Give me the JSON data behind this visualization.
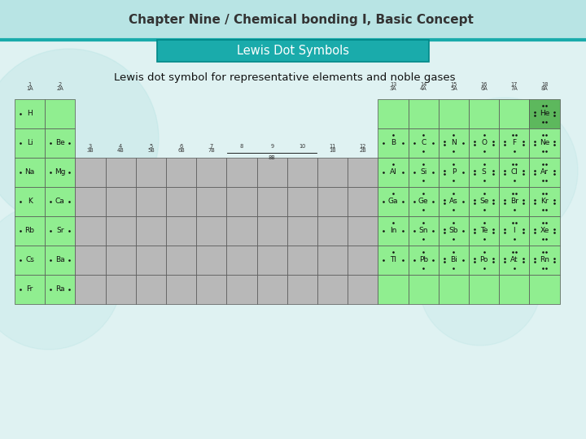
{
  "title": "Chapter Nine / Chemical bonding I, Basic Concept",
  "subtitle": "Lewis Dot Symbols",
  "subtitle2": "Lewis dot symbol for representative elements and noble gases",
  "bg_color": "#dff2f2",
  "header_bg": "#b8e4e4",
  "teal_line": "#1aabab",
  "green_light": "#90ee90",
  "green_dark": "#5db85d",
  "gray_cell": "#b8b8b8",
  "lewis_symbols": {
    "1,1": [
      "H",
      1
    ],
    "1,18": [
      "He",
      8
    ],
    "2,1": [
      "Li",
      1
    ],
    "2,2": [
      "Be",
      2
    ],
    "2,13": [
      "B",
      3
    ],
    "2,14": [
      "C",
      4
    ],
    "2,15": [
      "N",
      5
    ],
    "2,16": [
      "O",
      6
    ],
    "2,17": [
      "F",
      7
    ],
    "2,18": [
      "Ne",
      8
    ],
    "3,1": [
      "Na",
      1
    ],
    "3,2": [
      "Mg",
      2
    ],
    "3,13": [
      "Al",
      3
    ],
    "3,14": [
      "Si",
      4
    ],
    "3,15": [
      "P",
      5
    ],
    "3,16": [
      "S",
      6
    ],
    "3,17": [
      "Cl",
      7
    ],
    "3,18": [
      "Ar",
      8
    ],
    "4,1": [
      "K",
      1
    ],
    "4,2": [
      "Ca",
      2
    ],
    "4,13": [
      "Ga",
      3
    ],
    "4,14": [
      "Ge",
      4
    ],
    "4,15": [
      "As",
      5
    ],
    "4,16": [
      "Se",
      6
    ],
    "4,17": [
      "Br",
      7
    ],
    "4,18": [
      "Kr",
      8
    ],
    "5,1": [
      "Rb",
      1
    ],
    "5,2": [
      "Sr",
      2
    ],
    "5,13": [
      "In",
      3
    ],
    "5,14": [
      "Sn",
      4
    ],
    "5,15": [
      "Sb",
      5
    ],
    "5,16": [
      "Te",
      6
    ],
    "5,17": [
      "I",
      7
    ],
    "5,18": [
      "Xe",
      8
    ],
    "6,1": [
      "Cs",
      1
    ],
    "6,2": [
      "Ba",
      2
    ],
    "6,13": [
      "Tl",
      3
    ],
    "6,14": [
      "Pb",
      4
    ],
    "6,15": [
      "Bi",
      5
    ],
    "6,16": [
      "Po",
      6
    ],
    "6,17": [
      "At",
      7
    ],
    "6,18": [
      "Rn",
      8
    ],
    "7,1": [
      "Fr",
      1
    ],
    "7,2": [
      "Ra",
      2
    ]
  }
}
